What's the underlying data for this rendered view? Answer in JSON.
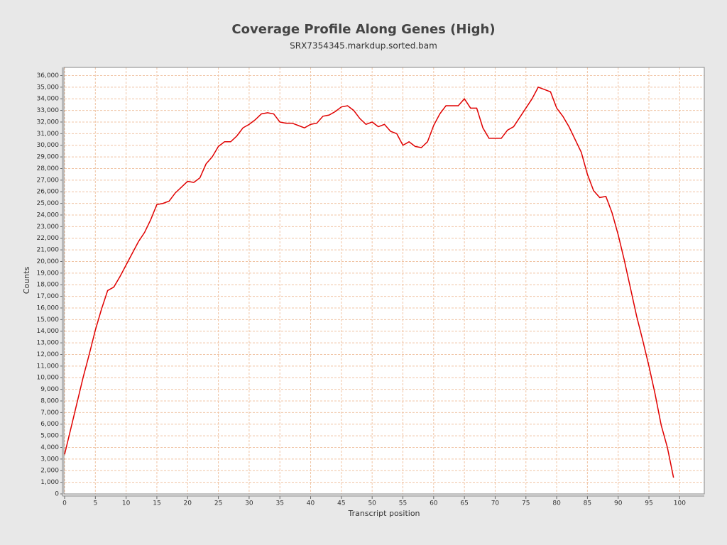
{
  "chart_data": {
    "type": "line",
    "title": "Coverage Profile Along Genes (High)",
    "subtitle": "SRX7354345.markdup.sorted.bam",
    "x_label": "Transcript position",
    "y_label": "Counts",
    "x": [
      0,
      1,
      2,
      3,
      4,
      5,
      6,
      7,
      8,
      9,
      10,
      11,
      12,
      13,
      14,
      15,
      16,
      17,
      18,
      19,
      20,
      21,
      22,
      23,
      24,
      25,
      26,
      27,
      28,
      29,
      30,
      31,
      32,
      33,
      34,
      35,
      36,
      37,
      38,
      39,
      40,
      41,
      42,
      43,
      44,
      45,
      46,
      47,
      48,
      49,
      50,
      51,
      52,
      53,
      54,
      55,
      56,
      57,
      58,
      59,
      60,
      61,
      62,
      63,
      64,
      65,
      66,
      67,
      68,
      69,
      70,
      71,
      72,
      73,
      74,
      75,
      76,
      77,
      78,
      79,
      80,
      81,
      82,
      83,
      84,
      85,
      86,
      87,
      88,
      89,
      90,
      91,
      92,
      93,
      94,
      95,
      96,
      97,
      98,
      99
    ],
    "values": [
      3400,
      5600,
      7800,
      10000,
      12000,
      14100,
      15900,
      17500,
      17800,
      18700,
      19700,
      20700,
      21700,
      22500,
      23600,
      24900,
      25000,
      25200,
      25900,
      26400,
      26900,
      26800,
      27200,
      28400,
      29000,
      29900,
      30300,
      30300,
      30800,
      31500,
      31800,
      32200,
      32700,
      32800,
      32700,
      32000,
      31900,
      31900,
      31700,
      31500,
      31800,
      31900,
      32500,
      32600,
      32900,
      33300,
      33400,
      33000,
      32300,
      31800,
      32000,
      31600,
      31800,
      31200,
      31000,
      30000,
      30300,
      29900,
      29800,
      30300,
      31700,
      32700,
      33400,
      33400,
      33400,
      34000,
      33200,
      33200,
      31500,
      30600,
      30600,
      30600,
      31300,
      31600,
      32400,
      33200,
      34000,
      35000,
      34800,
      34600,
      33200,
      32500,
      31600,
      30500,
      29400,
      27500,
      26100,
      25500,
      25600,
      24200,
      22300,
      20100,
      17700,
      15300,
      13200,
      11000,
      8600,
      5900,
      4000,
      1400
    ],
    "color": "#e00000",
    "xlim": [
      0,
      104
    ],
    "xticks": [
      0,
      5,
      10,
      15,
      20,
      25,
      30,
      35,
      40,
      45,
      50,
      55,
      60,
      65,
      70,
      75,
      80,
      85,
      90,
      95,
      100
    ],
    "ylim": [
      0,
      36700
    ],
    "yticks": [
      0,
      {
        "value": 1000,
        "label": "1,000"
      },
      {
        "value": 2000,
        "label": "2,000"
      },
      {
        "value": 3000,
        "label": "3,000"
      },
      {
        "value": 4000,
        "label": "4,000"
      },
      {
        "value": 5000,
        "label": "5,000"
      },
      {
        "value": 6000,
        "label": "6,000"
      },
      {
        "value": 7000,
        "label": "7,000"
      },
      {
        "value": 8000,
        "label": "8,000"
      },
      {
        "value": 9000,
        "label": "9,000"
      },
      {
        "value": 10000,
        "label": "10,000"
      },
      {
        "value": 11000,
        "label": "11,000"
      },
      {
        "value": 12000,
        "label": "12,000"
      },
      {
        "value": 13000,
        "label": "13,000"
      },
      {
        "value": 14000,
        "label": "14,000"
      },
      {
        "value": 15000,
        "label": "15,000"
      },
      {
        "value": 16000,
        "label": "16,000"
      },
      {
        "value": 17000,
        "label": "17,000"
      },
      {
        "value": 18000,
        "label": "18,000"
      },
      {
        "value": 19000,
        "label": "19,000"
      },
      {
        "value": 20000,
        "label": "20,000"
      },
      {
        "value": 21000,
        "label": "21,000"
      },
      {
        "value": 22000,
        "label": "22,000"
      },
      {
        "value": 23000,
        "label": "23,000"
      },
      {
        "value": 24000,
        "label": "24,000"
      },
      {
        "value": 25000,
        "label": "25,000"
      },
      {
        "value": 26000,
        "label": "26,000"
      },
      {
        "value": 27000,
        "label": "27,000"
      },
      {
        "value": 28000,
        "label": "28,000"
      },
      {
        "value": 29000,
        "label": "29,000"
      },
      {
        "value": 30000,
        "label": "30,000"
      },
      {
        "value": 31000,
        "label": "31,000"
      },
      {
        "value": 32000,
        "label": "32,000"
      },
      {
        "value": 33000,
        "label": "33,000"
      },
      {
        "value": 34000,
        "label": "34,000"
      },
      {
        "value": 35000,
        "label": "35,000"
      },
      {
        "value": 36000,
        "label": "36,000"
      }
    ],
    "grid": true
  }
}
